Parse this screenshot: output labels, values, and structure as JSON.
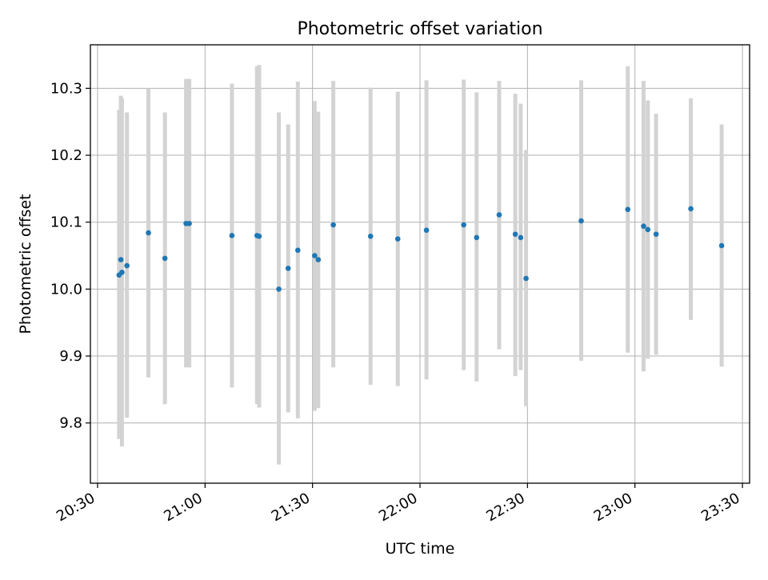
{
  "chart_data": {
    "type": "scatter",
    "title": "Photometric offset variation",
    "xlabel": "UTC time",
    "ylabel": "Photometric offset",
    "xlim": [
      "20:28",
      "23:32"
    ],
    "ylim": [
      9.71,
      10.365
    ],
    "xticks": [
      "20:30",
      "21:00",
      "21:30",
      "22:00",
      "22:30",
      "23:00",
      "23:30"
    ],
    "yticks": [
      "9.8",
      "9.9",
      "10.0",
      "10.1",
      "10.2",
      "10.3"
    ],
    "grid": true,
    "series": [
      {
        "marker_color": "#1f77b4",
        "errorbar_color": "#d3d3d3",
        "points": [
          {
            "x": "20:36",
            "y": 10.021,
            "ylow": 9.776,
            "yhigh": 10.268
          },
          {
            "x": "20:36.5",
            "y": 10.044,
            "ylow": 9.78,
            "yhigh": 10.289
          },
          {
            "x": "20:36.8",
            "y": 10.025,
            "ylow": 9.765,
            "yhigh": 10.285
          },
          {
            "x": "20:38.2",
            "y": 10.035,
            "ylow": 9.808,
            "yhigh": 10.264
          },
          {
            "x": "20:44.2",
            "y": 10.084,
            "ylow": 9.868,
            "yhigh": 10.3
          },
          {
            "x": "20:48.8",
            "y": 10.046,
            "ylow": 9.828,
            "yhigh": 10.264
          },
          {
            "x": "20:54.7",
            "y": 10.098,
            "ylow": 9.883,
            "yhigh": 10.314
          },
          {
            "x": "20:55.6",
            "y": 10.098,
            "ylow": 9.883,
            "yhigh": 10.314
          },
          {
            "x": "21:07.5",
            "y": 10.08,
            "ylow": 9.853,
            "yhigh": 10.307
          },
          {
            "x": "21:14.5",
            "y": 10.08,
            "ylow": 9.828,
            "yhigh": 10.333
          },
          {
            "x": "21:15.1",
            "y": 10.079,
            "ylow": 9.823,
            "yhigh": 10.335
          },
          {
            "x": "21:20.6",
            "y": 10.0,
            "ylow": 9.738,
            "yhigh": 10.264
          },
          {
            "x": "21:23.2",
            "y": 10.031,
            "ylow": 9.816,
            "yhigh": 10.246
          },
          {
            "x": "21:25.9",
            "y": 10.058,
            "ylow": 9.807,
            "yhigh": 10.31
          },
          {
            "x": "21:30.6",
            "y": 10.05,
            "ylow": 9.818,
            "yhigh": 10.281
          },
          {
            "x": "21:31.6",
            "y": 10.044,
            "ylow": 9.822,
            "yhigh": 10.265
          },
          {
            "x": "21:35.8",
            "y": 10.096,
            "ylow": 9.883,
            "yhigh": 10.311
          },
          {
            "x": "21:46.2",
            "y": 10.079,
            "ylow": 9.857,
            "yhigh": 10.301
          },
          {
            "x": "21:53.8",
            "y": 10.075,
            "ylow": 9.855,
            "yhigh": 10.295
          },
          {
            "x": "22:01.8",
            "y": 10.088,
            "ylow": 9.865,
            "yhigh": 10.312
          },
          {
            "x": "22:12.2",
            "y": 10.096,
            "ylow": 9.879,
            "yhigh": 10.313
          },
          {
            "x": "22:15.8",
            "y": 10.077,
            "ylow": 9.862,
            "yhigh": 10.294
          },
          {
            "x": "22:22.1",
            "y": 10.111,
            "ylow": 9.91,
            "yhigh": 10.311
          },
          {
            "x": "22:26.6",
            "y": 10.082,
            "ylow": 9.87,
            "yhigh": 10.292
          },
          {
            "x": "22:28.1",
            "y": 10.077,
            "ylow": 9.879,
            "yhigh": 10.277
          },
          {
            "x": "22:29.6",
            "y": 10.016,
            "ylow": 9.825,
            "yhigh": 10.208
          },
          {
            "x": "22:45",
            "y": 10.102,
            "ylow": 9.893,
            "yhigh": 10.312
          },
          {
            "x": "22:58",
            "y": 10.119,
            "ylow": 9.905,
            "yhigh": 10.333
          },
          {
            "x": "23:02.4",
            "y": 10.094,
            "ylow": 9.877,
            "yhigh": 10.311
          },
          {
            "x": "23:03.6",
            "y": 10.089,
            "ylow": 9.896,
            "yhigh": 10.282
          },
          {
            "x": "23:05.9",
            "y": 10.082,
            "ylow": 9.902,
            "yhigh": 10.262
          },
          {
            "x": "23:15.6",
            "y": 10.12,
            "ylow": 9.954,
            "yhigh": 10.285
          },
          {
            "x": "23:24.2",
            "y": 10.065,
            "ylow": 9.884,
            "yhigh": 10.246
          }
        ]
      }
    ]
  }
}
